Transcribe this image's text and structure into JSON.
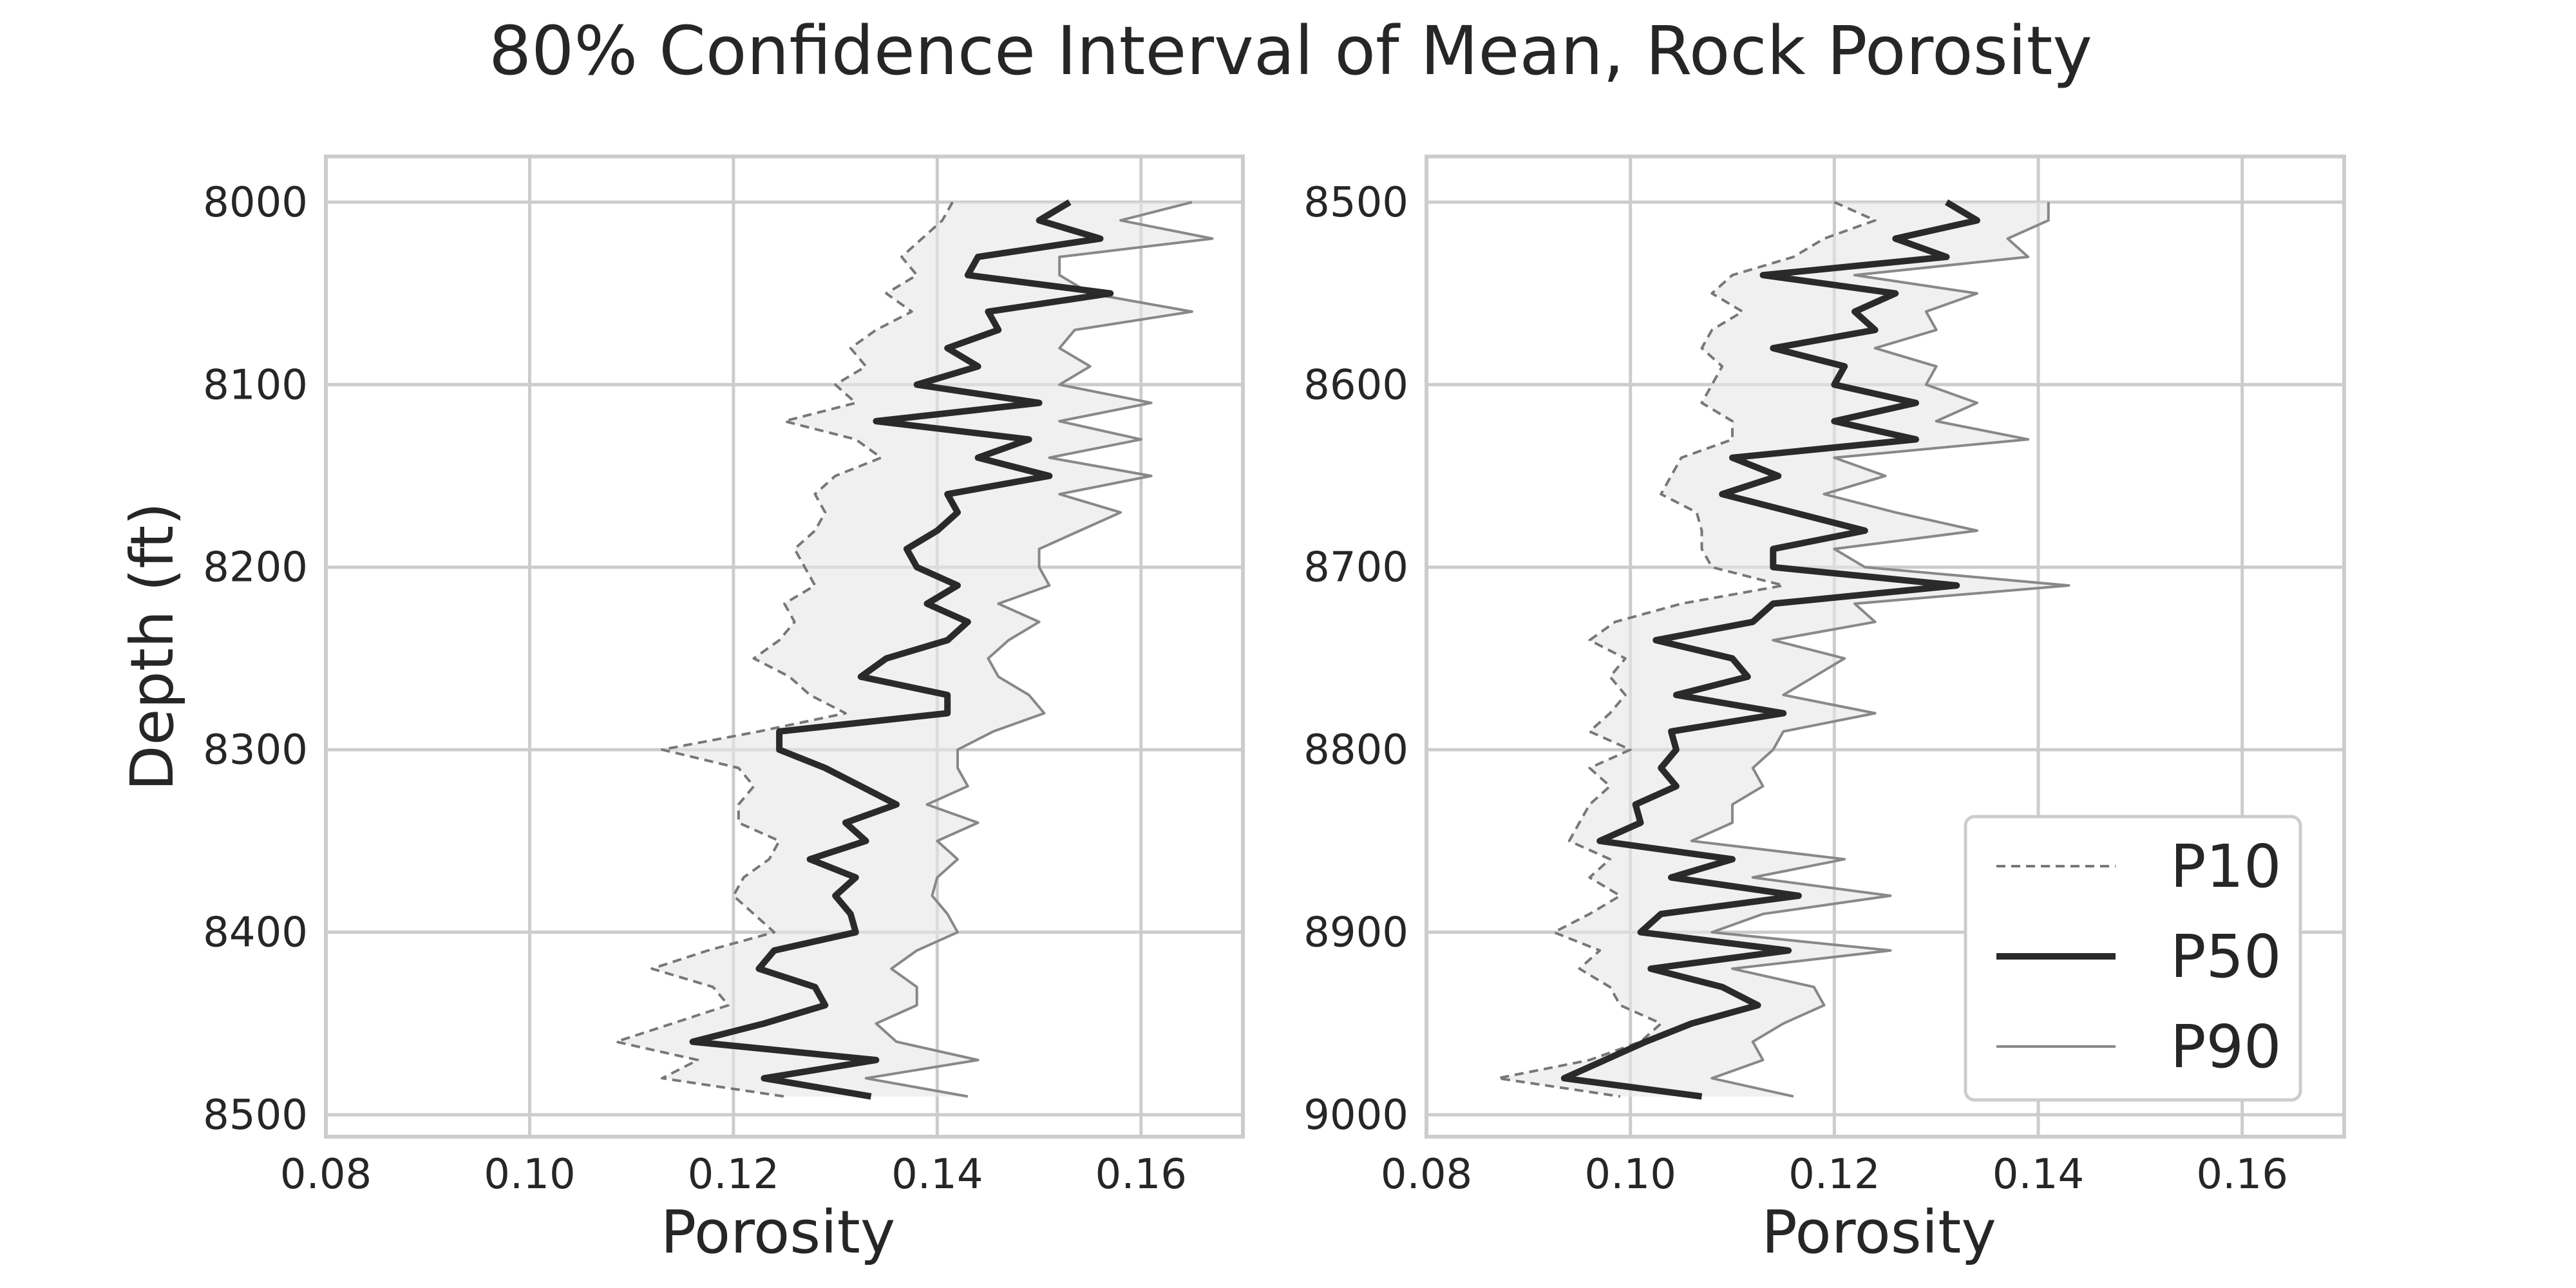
{
  "chart_data": {
    "type": "line",
    "title": "80% Confidence Interval of Mean, Rock Porosity",
    "legend": {
      "entries": [
        "P10",
        "P50",
        "P90"
      ],
      "placement": "lower-right"
    },
    "panels": [
      {
        "xlabel": "Porosity",
        "ylabel": "Depth (ft)",
        "xlim": [
          0.08,
          0.17
        ],
        "ylim": [
          8512,
          7975
        ],
        "xticks": [
          "0.08",
          "0.10",
          "0.12",
          "0.14",
          "0.16"
        ],
        "yticks": [
          "8000",
          "8100",
          "8200",
          "8300",
          "8400",
          "8500"
        ],
        "grid": true,
        "depth": [
          8000,
          8010,
          8020,
          8030,
          8040,
          8050,
          8060,
          8070,
          8080,
          8090,
          8100,
          8110,
          8120,
          8130,
          8140,
          8150,
          8160,
          8170,
          8180,
          8190,
          8200,
          8210,
          8220,
          8230,
          8240,
          8250,
          8260,
          8270,
          8280,
          8290,
          8300,
          8310,
          8320,
          8330,
          8340,
          8350,
          8360,
          8370,
          8380,
          8390,
          8400,
          8410,
          8420,
          8430,
          8440,
          8450,
          8460,
          8470,
          8480,
          8490
        ],
        "series": [
          {
            "name": "P10",
            "values": [
              0.1415,
              0.1405,
              0.1385,
              0.1365,
              0.138,
              0.135,
              0.1375,
              0.134,
              0.1315,
              0.133,
              0.13,
              0.132,
              0.125,
              0.132,
              0.1345,
              0.13,
              0.128,
              0.129,
              0.128,
              0.126,
              0.127,
              0.128,
              0.125,
              0.126,
              0.1245,
              0.122,
              0.1255,
              0.1275,
              0.131,
              0.1225,
              0.113,
              0.1205,
              0.122,
              0.1205,
              0.1205,
              0.1245,
              0.1235,
              0.121,
              0.12,
              0.122,
              0.124,
              0.1175,
              0.112,
              0.118,
              0.1195,
              0.114,
              0.1085,
              0.1165,
              0.113,
              0.125
            ]
          },
          {
            "name": "P50",
            "values": [
              0.153,
              0.15,
              0.156,
              0.144,
              0.143,
              0.157,
              0.145,
              0.146,
              0.141,
              0.144,
              0.138,
              0.15,
              0.134,
              0.149,
              0.144,
              0.151,
              0.141,
              0.142,
              0.14,
              0.137,
              0.138,
              0.142,
              0.139,
              0.143,
              0.141,
              0.135,
              0.1325,
              0.141,
              0.141,
              0.1245,
              0.1245,
              0.129,
              0.1325,
              0.136,
              0.131,
              0.133,
              0.1275,
              0.132,
              0.13,
              0.1315,
              0.132,
              0.124,
              0.1225,
              0.128,
              0.129,
              0.123,
              0.116,
              0.134,
              0.123,
              0.1335
            ]
          },
          {
            "name": "P90",
            "values": [
              0.165,
              0.158,
              0.167,
              0.152,
              0.152,
              0.155,
              0.165,
              0.1535,
              0.152,
              0.155,
              0.152,
              0.161,
              0.152,
              0.16,
              0.151,
              0.161,
              0.152,
              0.158,
              0.154,
              0.15,
              0.15,
              0.151,
              0.146,
              0.15,
              0.147,
              0.145,
              0.146,
              0.149,
              0.1505,
              0.1455,
              0.142,
              0.142,
              0.143,
              0.139,
              0.144,
              0.14,
              0.142,
              0.14,
              0.1395,
              0.141,
              0.142,
              0.138,
              0.1355,
              0.138,
              0.138,
              0.134,
              0.136,
              0.144,
              0.133,
              0.143
            ]
          }
        ]
      },
      {
        "xlabel": "Porosity",
        "ylabel": "",
        "xlim": [
          0.08,
          0.17
        ],
        "ylim": [
          9012,
          8475
        ],
        "xticks": [
          "0.08",
          "0.10",
          "0.12",
          "0.14",
          "0.16"
        ],
        "yticks": [
          "8500",
          "8600",
          "8700",
          "8800",
          "8900",
          "9000"
        ],
        "grid": true,
        "depth": [
          8500,
          8510,
          8520,
          8530,
          8540,
          8550,
          8560,
          8570,
          8580,
          8590,
          8600,
          8610,
          8620,
          8630,
          8640,
          8650,
          8660,
          8670,
          8680,
          8690,
          8700,
          8710,
          8720,
          8730,
          8740,
          8750,
          8760,
          8770,
          8780,
          8790,
          8800,
          8810,
          8820,
          8830,
          8840,
          8850,
          8860,
          8870,
          8880,
          8890,
          8900,
          8910,
          8920,
          8930,
          8940,
          8950,
          8960,
          8970,
          8980,
          8990
        ],
        "series": [
          {
            "name": "P10",
            "values": [
              0.12,
              0.124,
              0.119,
              0.116,
              0.11,
              0.108,
              0.111,
              0.108,
              0.107,
              0.109,
              0.108,
              0.107,
              0.11,
              0.11,
              0.105,
              0.104,
              0.103,
              0.1065,
              0.107,
              0.107,
              0.108,
              0.115,
              0.105,
              0.0985,
              0.096,
              0.0995,
              0.098,
              0.0995,
              0.098,
              0.096,
              0.1,
              0.096,
              0.098,
              0.096,
              0.095,
              0.094,
              0.098,
              0.096,
              0.099,
              0.096,
              0.0925,
              0.097,
              0.095,
              0.098,
              0.099,
              0.103,
              0.101,
              0.096,
              0.087,
              0.099
            ]
          },
          {
            "name": "P50",
            "values": [
              0.131,
              0.134,
              0.126,
              0.131,
              0.113,
              0.126,
              0.122,
              0.124,
              0.114,
              0.121,
              0.12,
              0.128,
              0.12,
              0.128,
              0.11,
              0.1145,
              0.109,
              0.116,
              0.123,
              0.114,
              0.114,
              0.132,
              0.114,
              0.112,
              0.1025,
              0.11,
              0.1115,
              0.1045,
              0.115,
              0.104,
              0.1045,
              0.103,
              0.1045,
              0.1005,
              0.101,
              0.097,
              0.11,
              0.104,
              0.1165,
              0.103,
              0.101,
              0.1155,
              0.102,
              0.109,
              0.1125,
              0.106,
              0.1015,
              0.0975,
              0.0935,
              0.107
            ]
          },
          {
            "name": "P90",
            "values": [
              0.141,
              0.141,
              0.137,
              0.139,
              0.122,
              0.134,
              0.129,
              0.13,
              0.124,
              0.13,
              0.129,
              0.134,
              0.13,
              0.139,
              0.12,
              0.125,
              0.119,
              0.126,
              0.134,
              0.12,
              0.123,
              0.143,
              0.122,
              0.124,
              0.114,
              0.121,
              0.118,
              0.115,
              0.124,
              0.115,
              0.114,
              0.112,
              0.113,
              0.11,
              0.11,
              0.106,
              0.121,
              0.112,
              0.1255,
              0.113,
              0.108,
              0.1255,
              0.11,
              0.118,
              0.119,
              0.115,
              0.112,
              0.113,
              0.108,
              0.116
            ]
          }
        ]
      }
    ]
  }
}
